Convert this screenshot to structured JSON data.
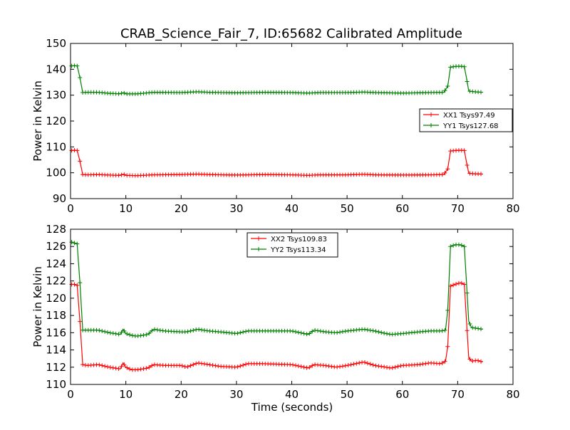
{
  "chart_data": {
    "type": "line",
    "title": "CRAB_Science_Fair_7, ID:65682 Calibrated Amplitude",
    "xlabel": "Time (seconds)",
    "panels": [
      {
        "ylabel": "Power in Kelvin",
        "xlim": [
          0,
          80
        ],
        "ylim": [
          90,
          150
        ],
        "xticks": [
          0,
          10,
          20,
          30,
          40,
          50,
          60,
          70,
          80
        ],
        "yticks": [
          90,
          100,
          110,
          120,
          130,
          140,
          150
        ],
        "legend_position": "center-right",
        "series": [
          {
            "name": "XX1 Tsys97.49",
            "color": "#ff0000",
            "points": [
              [
                0.2,
                108.6
              ],
              [
                0.7,
                108.7
              ],
              [
                1.2,
                108.6
              ],
              [
                1.7,
                104.5
              ],
              [
                2.2,
                99.3
              ],
              [
                3,
                99.2
              ],
              [
                5,
                99.3
              ],
              [
                7,
                99.1
              ],
              [
                9,
                99.0
              ],
              [
                9.5,
                99.5
              ],
              [
                10,
                99.0
              ],
              [
                12,
                98.9
              ],
              [
                15,
                99.2
              ],
              [
                20,
                99.3
              ],
              [
                23,
                99.5
              ],
              [
                25,
                99.3
              ],
              [
                30,
                99.1
              ],
              [
                35,
                99.3
              ],
              [
                40,
                99.2
              ],
              [
                43,
                99.0
              ],
              [
                45,
                99.2
              ],
              [
                50,
                99.2
              ],
              [
                53,
                99.4
              ],
              [
                55,
                99.2
              ],
              [
                60,
                99.1
              ],
              [
                65,
                99.2
              ],
              [
                67.5,
                99.3
              ],
              [
                68.2,
                101.5
              ],
              [
                68.7,
                108.4
              ],
              [
                69.5,
                108.6
              ],
              [
                70.5,
                108.7
              ],
              [
                71.2,
                108.6
              ],
              [
                71.6,
                104.0
              ],
              [
                72,
                99.8
              ],
              [
                73,
                99.6
              ],
              [
                74.5,
                99.5
              ]
            ]
          },
          {
            "name": "YY1 Tsys127.68",
            "color": "#008000",
            "points": [
              [
                0.2,
                141.3
              ],
              [
                0.7,
                141.4
              ],
              [
                1.2,
                141.3
              ],
              [
                1.7,
                136.8
              ],
              [
                2.2,
                131.0
              ],
              [
                3,
                131.1
              ],
              [
                5,
                131.1
              ],
              [
                7,
                130.7
              ],
              [
                9,
                130.5
              ],
              [
                9.5,
                131.0
              ],
              [
                10,
                130.5
              ],
              [
                12,
                130.5
              ],
              [
                15,
                131.1
              ],
              [
                20,
                131.0
              ],
              [
                23,
                131.3
              ],
              [
                25,
                131.1
              ],
              [
                30,
                130.9
              ],
              [
                35,
                131.1
              ],
              [
                40,
                131.0
              ],
              [
                43,
                130.8
              ],
              [
                45,
                131.0
              ],
              [
                50,
                131.0
              ],
              [
                53,
                131.2
              ],
              [
                55,
                131.0
              ],
              [
                60,
                130.8
              ],
              [
                65,
                131.0
              ],
              [
                67.5,
                131.1
              ],
              [
                68.2,
                133.5
              ],
              [
                68.7,
                140.8
              ],
              [
                69.5,
                141.1
              ],
              [
                70.5,
                141.2
              ],
              [
                71.2,
                141.0
              ],
              [
                71.6,
                136.5
              ],
              [
                72,
                131.6
              ],
              [
                73,
                131.3
              ],
              [
                74.5,
                131.1
              ]
            ]
          }
        ]
      },
      {
        "ylabel": "Power in Kelvin",
        "xlim": [
          0,
          80
        ],
        "ylim": [
          110,
          128
        ],
        "xticks": [
          0,
          10,
          20,
          30,
          40,
          50,
          60,
          70,
          80
        ],
        "yticks": [
          110,
          112,
          114,
          116,
          118,
          120,
          122,
          124,
          126,
          128
        ],
        "legend_position": "upper-center",
        "series": [
          {
            "name": "XX2 Tsys109.83",
            "color": "#ff0000",
            "points": [
              [
                0.2,
                121.6
              ],
              [
                0.7,
                121.6
              ],
              [
                1.2,
                121.5
              ],
              [
                1.7,
                117.3
              ],
              [
                2.2,
                112.3
              ],
              [
                3,
                112.2
              ],
              [
                5,
                112.3
              ],
              [
                7,
                112.0
              ],
              [
                9,
                111.8
              ],
              [
                9.5,
                112.5
              ],
              [
                10,
                112.0
              ],
              [
                11,
                111.7
              ],
              [
                12,
                111.7
              ],
              [
                14,
                111.9
              ],
              [
                15,
                112.3
              ],
              [
                17,
                112.2
              ],
              [
                20,
                112.2
              ],
              [
                21,
                112.0
              ],
              [
                23,
                112.5
              ],
              [
                25,
                112.3
              ],
              [
                27,
                112.1
              ],
              [
                30,
                112.0
              ],
              [
                32,
                112.4
              ],
              [
                35,
                112.4
              ],
              [
                40,
                112.3
              ],
              [
                43,
                111.9
              ],
              [
                44,
                112.3
              ],
              [
                46,
                112.2
              ],
              [
                48,
                112.0
              ],
              [
                50,
                112.2
              ],
              [
                53,
                112.6
              ],
              [
                55,
                112.2
              ],
              [
                57,
                112.0
              ],
              [
                58,
                111.9
              ],
              [
                60,
                112.2
              ],
              [
                63,
                112.3
              ],
              [
                65,
                112.5
              ],
              [
                67,
                112.4
              ],
              [
                67.8,
                112.7
              ],
              [
                68.2,
                114.4
              ],
              [
                68.7,
                121.4
              ],
              [
                69.5,
                121.6
              ],
              [
                70.5,
                121.8
              ],
              [
                71.2,
                121.6
              ],
              [
                71.6,
                117.3
              ],
              [
                72,
                113.1
              ],
              [
                72.5,
                112.7
              ],
              [
                73.5,
                112.8
              ],
              [
                74.5,
                112.6
              ]
            ]
          },
          {
            "name": "YY2 Tsys113.34",
            "color": "#008000",
            "points": [
              [
                0.2,
                126.5
              ],
              [
                0.7,
                126.4
              ],
              [
                1.2,
                126.3
              ],
              [
                1.7,
                121.8
              ],
              [
                2.2,
                116.3
              ],
              [
                3,
                116.3
              ],
              [
                5,
                116.3
              ],
              [
                7,
                116.0
              ],
              [
                9,
                115.8
              ],
              [
                9.5,
                116.4
              ],
              [
                10,
                115.9
              ],
              [
                11,
                115.7
              ],
              [
                12,
                115.6
              ],
              [
                14,
                115.8
              ],
              [
                15,
                116.4
              ],
              [
                17,
                116.2
              ],
              [
                20,
                116.1
              ],
              [
                21,
                116.1
              ],
              [
                23,
                116.4
              ],
              [
                25,
                116.2
              ],
              [
                27,
                116.1
              ],
              [
                30,
                115.9
              ],
              [
                32,
                116.2
              ],
              [
                35,
                116.2
              ],
              [
                40,
                116.2
              ],
              [
                43,
                115.8
              ],
              [
                44,
                116.3
              ],
              [
                46,
                116.1
              ],
              [
                48,
                116.0
              ],
              [
                50,
                116.2
              ],
              [
                53,
                116.4
              ],
              [
                55,
                116.2
              ],
              [
                57,
                115.9
              ],
              [
                58,
                115.8
              ],
              [
                60,
                115.9
              ],
              [
                63,
                116.1
              ],
              [
                65,
                116.2
              ],
              [
                67,
                116.2
              ],
              [
                67.8,
                116.3
              ],
              [
                68.2,
                118.6
              ],
              [
                68.7,
                126.0
              ],
              [
                69.5,
                126.2
              ],
              [
                70.5,
                126.2
              ],
              [
                71.2,
                126.0
              ],
              [
                71.6,
                121.7
              ],
              [
                72,
                117.3
              ],
              [
                72.5,
                116.6
              ],
              [
                73.5,
                116.5
              ],
              [
                74.5,
                116.4
              ]
            ]
          }
        ]
      }
    ]
  }
}
